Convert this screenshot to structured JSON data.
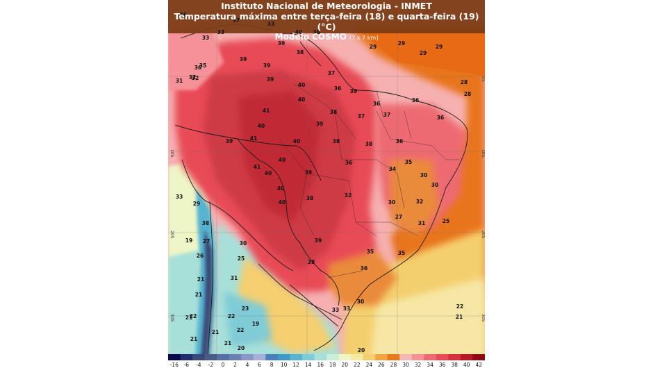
{
  "header": {
    "line1": "Instituto Nacional de Meteorologia - INMET",
    "line2": "Temperatura máxima entre terça-feira (18) e quarta-feira (19) (°C)",
    "line3": "Modelo COSMO",
    "line3_small": "[7 x 7 km]"
  },
  "grid_labels": {
    "lat_05": "05",
    "lat_10s": "10S",
    "lat_20s": "20S",
    "lat_30s": "30S"
  },
  "scale": {
    "labels": [
      "-16",
      "-6",
      "-4",
      "-2",
      "0",
      "2",
      "4",
      "6",
      "8",
      "10",
      "12",
      "14",
      "16",
      "18",
      "20",
      "22",
      "24",
      "26",
      "28",
      "30",
      "32",
      "34",
      "36",
      "38",
      "40",
      "42"
    ],
    "colors": [
      "#08084f",
      "#1f2c6e",
      "#394876",
      "#4b5a86",
      "#5a6ea6",
      "#6c7fb5",
      "#8b96c8",
      "#a7aed8",
      "#4a7fbd",
      "#3f97c6",
      "#56b4d0",
      "#7fcbd6",
      "#a7e0d9",
      "#cbeed9",
      "#eef6c8",
      "#f6eaa0",
      "#f5cf6f",
      "#f2a63f",
      "#e77a1a",
      "#f6b6b8",
      "#f59298",
      "#ee6a72",
      "#e84c57",
      "#d6313d",
      "#b51c28",
      "#8e0a14"
    ]
  },
  "map_values": [
    {
      "t": "36"
    },
    {
      "t": "37"
    },
    {
      "t": "33"
    },
    {
      "t": "33"
    },
    {
      "t": "40"
    },
    {
      "t": "38"
    },
    {
      "t": "33"
    },
    {
      "t": "39"
    },
    {
      "t": "38"
    },
    {
      "t": "29"
    },
    {
      "t": "29"
    },
    {
      "t": "29"
    },
    {
      "t": "29"
    },
    {
      "t": "35"
    },
    {
      "t": "39"
    },
    {
      "t": "39"
    },
    {
      "t": "36"
    },
    {
      "t": "32"
    },
    {
      "t": "31"
    },
    {
      "t": "32"
    },
    {
      "t": "37"
    },
    {
      "t": "39"
    },
    {
      "t": "40"
    },
    {
      "t": "36"
    },
    {
      "t": "39"
    },
    {
      "t": "28"
    },
    {
      "t": "28"
    },
    {
      "t": "40"
    },
    {
      "t": "36"
    },
    {
      "t": "36"
    },
    {
      "t": "41"
    },
    {
      "t": "38"
    },
    {
      "t": "37"
    },
    {
      "t": "37"
    },
    {
      "t": "40"
    },
    {
      "t": "39"
    },
    {
      "t": "36"
    },
    {
      "t": "39"
    },
    {
      "t": "41"
    },
    {
      "t": "40"
    },
    {
      "t": "38"
    },
    {
      "t": "38"
    },
    {
      "t": "36"
    },
    {
      "t": "41"
    },
    {
      "t": "40"
    },
    {
      "t": "39"
    },
    {
      "t": "36"
    },
    {
      "t": "34"
    },
    {
      "t": "35"
    },
    {
      "t": "40"
    },
    {
      "t": "30"
    },
    {
      "t": "30"
    },
    {
      "t": "33"
    },
    {
      "t": "29"
    },
    {
      "t": "40"
    },
    {
      "t": "40"
    },
    {
      "t": "38"
    },
    {
      "t": "32"
    },
    {
      "t": "30"
    },
    {
      "t": "32"
    },
    {
      "t": "27"
    },
    {
      "t": "38"
    },
    {
      "t": "31"
    },
    {
      "t": "25"
    },
    {
      "t": "19"
    },
    {
      "t": "27"
    },
    {
      "t": "30"
    },
    {
      "t": "39"
    },
    {
      "t": "26"
    },
    {
      "t": "25"
    },
    {
      "t": "35"
    },
    {
      "t": "35"
    },
    {
      "t": "38"
    },
    {
      "t": "21"
    },
    {
      "t": "31"
    },
    {
      "t": "36"
    },
    {
      "t": "21"
    },
    {
      "t": "23"
    },
    {
      "t": "30"
    },
    {
      "t": "33"
    },
    {
      "t": "33"
    },
    {
      "t": "21"
    },
    {
      "t": "22"
    },
    {
      "t": "22"
    },
    {
      "t": "19"
    },
    {
      "t": "22"
    },
    {
      "t": "21"
    },
    {
      "t": "21"
    },
    {
      "t": "22"
    },
    {
      "t": "21"
    },
    {
      "t": "21"
    },
    {
      "t": "20"
    },
    {
      "t": "20"
    }
  ]
}
